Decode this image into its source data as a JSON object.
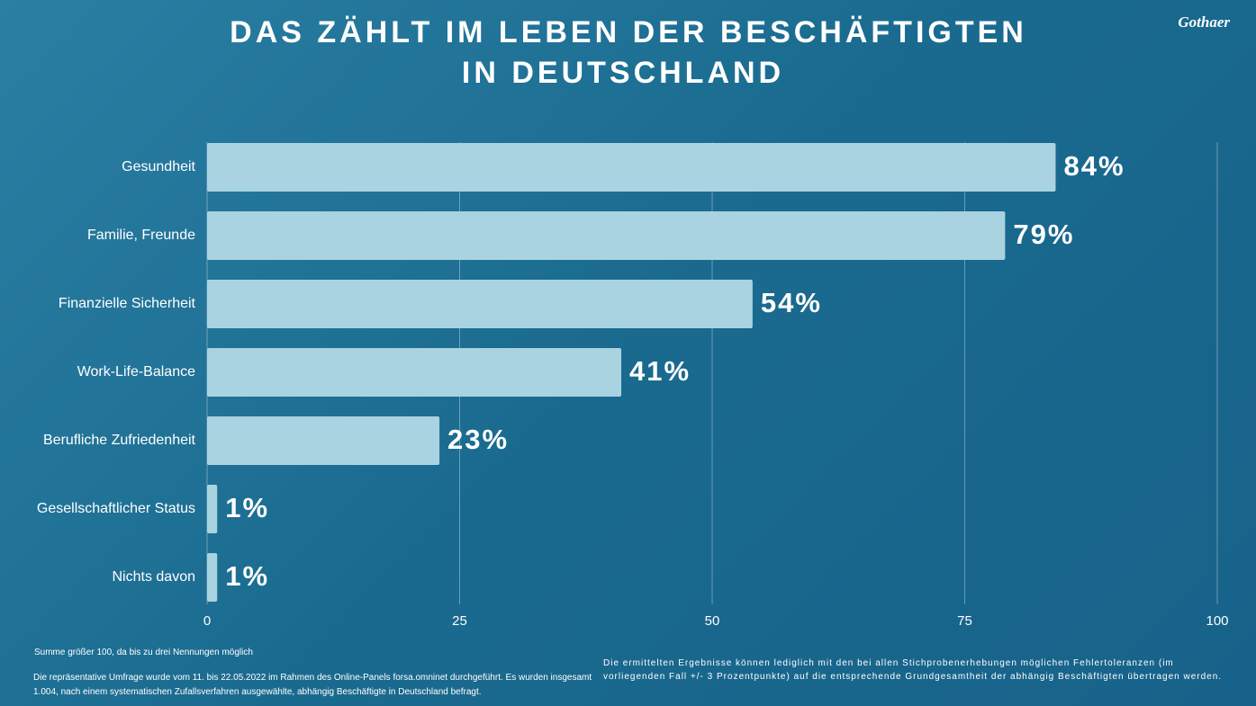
{
  "logo": "Gothaer",
  "chart_data": {
    "type": "bar",
    "orientation": "horizontal",
    "title_lines": [
      "DAS ZÄHLT IM LEBEN DER BESCHÄFTIGTEN",
      "IN DEUTSCHLAND"
    ],
    "categories": [
      "Gesundheit",
      "Familie, Freunde",
      "Finanzielle Sicherheit",
      "Work-Life-Balance",
      "Berufliche Zufriedenheit",
      "Gesellschaftlicher Status",
      "Nichts davon"
    ],
    "values": [
      84,
      79,
      54,
      41,
      23,
      1,
      1
    ],
    "value_labels": [
      "84%",
      "79%",
      "54%",
      "41%",
      "23%",
      "1%",
      "1%"
    ],
    "color": "#a9d3e0",
    "xlim": [
      0,
      100
    ],
    "xticks": [
      0,
      25,
      50,
      75,
      100
    ],
    "grid": true
  },
  "notes": [
    "Summe größer 100, da bis zu drei Nennungen möglich",
    "Die repräsentative Umfrage wurde vom 11. bis 22.05.2022 im Rahmen des Online-Panels forsa.omninet durchgeführt. Es wurden insgesamt 1.004, nach einem systematischen Zufallsverfahren ausgewählte, abhängig Beschäftigte in Deutschland befragt.",
    "Die ermittelten Ergebnisse können lediglich mit den bei allen Stichprobenerhebungen möglichen Fehlertoleranzen (im vorliegenden Fall +/- 3 Prozentpunkte) auf die entsprechende Grundgesamtheit der abhängig Beschäftigten übertragen werden."
  ]
}
